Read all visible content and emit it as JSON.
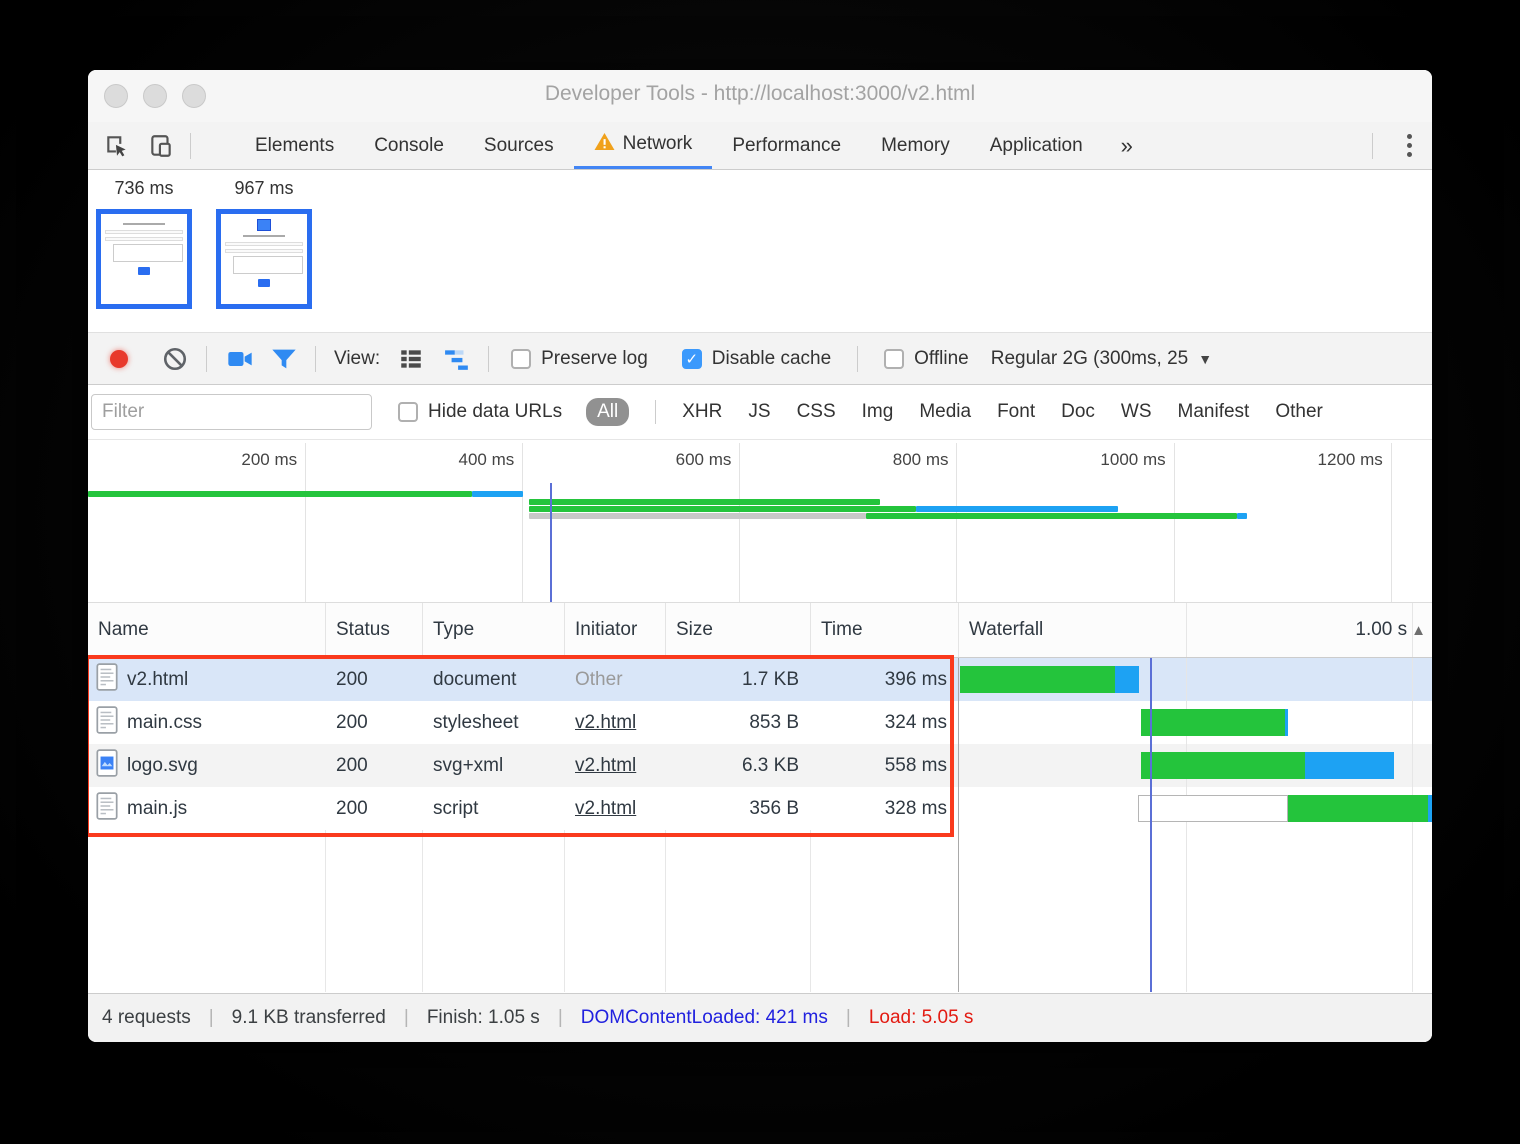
{
  "colors": {
    "accent": "#3b99fc",
    "tab_underline": "#4285f4",
    "waterfall_green": "#24c43c",
    "waterfall_blue": "#1da2f3",
    "overview_gray": "#c8c8c8",
    "stalled_border": "#b5b5b5",
    "record_red": "#e8392b",
    "annotation_red": "#fa3a1d",
    "dcl_line": "#5b6fd6",
    "status_blue": "#2121df",
    "status_red": "#e31b12",
    "selected_row_bg": "#d9e6f8"
  },
  "window": {
    "title": "Developer Tools - http://localhost:3000/v2.html"
  },
  "tabs": {
    "items": [
      {
        "label": "Elements",
        "active": false,
        "warning": false
      },
      {
        "label": "Console",
        "active": false,
        "warning": false
      },
      {
        "label": "Sources",
        "active": false,
        "warning": false
      },
      {
        "label": "Network",
        "active": true,
        "warning": true
      },
      {
        "label": "Performance",
        "active": false,
        "warning": false
      },
      {
        "label": "Memory",
        "active": false,
        "warning": false
      },
      {
        "label": "Application",
        "active": false,
        "warning": false
      }
    ],
    "more_label": "»"
  },
  "filmstrip": {
    "frames": [
      {
        "time": "736 ms",
        "broken_image": false
      },
      {
        "time": "967 ms",
        "broken_image": true
      }
    ]
  },
  "toolbar": {
    "view_label": "View:",
    "preserve_log": {
      "label": "Preserve log",
      "checked": false
    },
    "disable_cache": {
      "label": "Disable cache",
      "checked": true
    },
    "offline": {
      "label": "Offline",
      "checked": false
    },
    "throttling_label": "Regular 2G (300ms, 25",
    "caret": "▼"
  },
  "filterbar": {
    "placeholder": "Filter",
    "hide_data_urls": {
      "label": "Hide data URLs",
      "checked": false
    },
    "types": [
      "All",
      "XHR",
      "JS",
      "CSS",
      "Img",
      "Media",
      "Font",
      "Doc",
      "WS",
      "Manifest",
      "Other"
    ],
    "selected": "All"
  },
  "chart_data": {
    "type": "area",
    "title": "Network overview timeline",
    "axis_unit": "ms",
    "range_ms": 1238,
    "ticks": [
      {
        "label": "200 ms",
        "ms": 200
      },
      {
        "label": "400 ms",
        "ms": 400
      },
      {
        "label": "600 ms",
        "ms": 600
      },
      {
        "label": "800 ms",
        "ms": 800
      },
      {
        "label": "1000 ms",
        "ms": 1000
      },
      {
        "label": "1200 ms",
        "ms": 1200
      }
    ],
    "dcl_marker_ms": 426,
    "series": [
      {
        "name": "v2.html",
        "y": 51,
        "segments": [
          {
            "kind": "green",
            "from": 0,
            "to": 354
          },
          {
            "kind": "blue",
            "from": 354,
            "to": 401
          }
        ]
      },
      {
        "name": "main.css",
        "y": 59,
        "segments": [
          {
            "kind": "green",
            "from": 406,
            "to": 730
          }
        ]
      },
      {
        "name": "logo.svg",
        "y": 66,
        "segments": [
          {
            "kind": "green",
            "from": 406,
            "to": 763
          },
          {
            "kind": "blue",
            "from": 763,
            "to": 949
          }
        ]
      },
      {
        "name": "main.js",
        "y": 73,
        "segments": [
          {
            "kind": "gray",
            "from": 406,
            "to": 717
          },
          {
            "kind": "green",
            "from": 717,
            "to": 1058
          },
          {
            "kind": "blue",
            "from": 1058,
            "to": 1068
          }
        ]
      }
    ]
  },
  "table": {
    "columns": [
      "Name",
      "Status",
      "Type",
      "Initiator",
      "Size",
      "Time"
    ],
    "waterfall": {
      "label": "Waterfall",
      "time_label": "1.00 s",
      "sort_icon": "▲",
      "axis_max_ms": 1044,
      "grid_ms": [
        500,
        1000
      ],
      "dcl_marker_ms": 421
    },
    "rows": [
      {
        "name": "v2.html",
        "icon": "document",
        "status": "200",
        "type": "document",
        "initiator": "Other",
        "initiator_is_link": false,
        "size": "1.7 KB",
        "time": "396 ms",
        "selected": true,
        "stripe": false,
        "waterfall": [
          {
            "kind": "waiting",
            "from": 2,
            "to": 344
          },
          {
            "kind": "download",
            "from": 344,
            "to": 398
          }
        ]
      },
      {
        "name": "main.css",
        "icon": "document",
        "status": "200",
        "type": "stylesheet",
        "initiator": "v2.html",
        "initiator_is_link": true,
        "size": "853 B",
        "time": "324 ms",
        "selected": false,
        "stripe": false,
        "waterfall": [
          {
            "kind": "waiting",
            "from": 401,
            "to": 720
          },
          {
            "kind": "download",
            "from": 720,
            "to": 727
          }
        ]
      },
      {
        "name": "logo.svg",
        "icon": "image",
        "status": "200",
        "type": "svg+xml",
        "initiator": "v2.html",
        "initiator_is_link": true,
        "size": "6.3 KB",
        "time": "558 ms",
        "selected": false,
        "stripe": true,
        "waterfall": [
          {
            "kind": "waiting",
            "from": 401,
            "to": 764
          },
          {
            "kind": "download",
            "from": 764,
            "to": 960
          }
        ]
      },
      {
        "name": "main.js",
        "icon": "document",
        "status": "200",
        "type": "script",
        "initiator": "v2.html",
        "initiator_is_link": true,
        "size": "356 B",
        "time": "328 ms",
        "selected": false,
        "stripe": false,
        "waterfall": [
          {
            "kind": "stalled",
            "from": 396,
            "to": 727
          },
          {
            "kind": "waiting",
            "from": 727,
            "to": 1036
          },
          {
            "kind": "download",
            "from": 1036,
            "to": 1044
          }
        ]
      }
    ]
  },
  "statusbar": {
    "items": [
      {
        "text": "4 requests",
        "color": "default"
      },
      {
        "text": "9.1 KB transferred",
        "color": "default"
      },
      {
        "text": "Finish: 1.05 s",
        "color": "default"
      },
      {
        "text": "DOMContentLoaded: 421 ms",
        "color": "blue"
      },
      {
        "text": "Load: 5.05 s",
        "color": "red"
      }
    ]
  }
}
